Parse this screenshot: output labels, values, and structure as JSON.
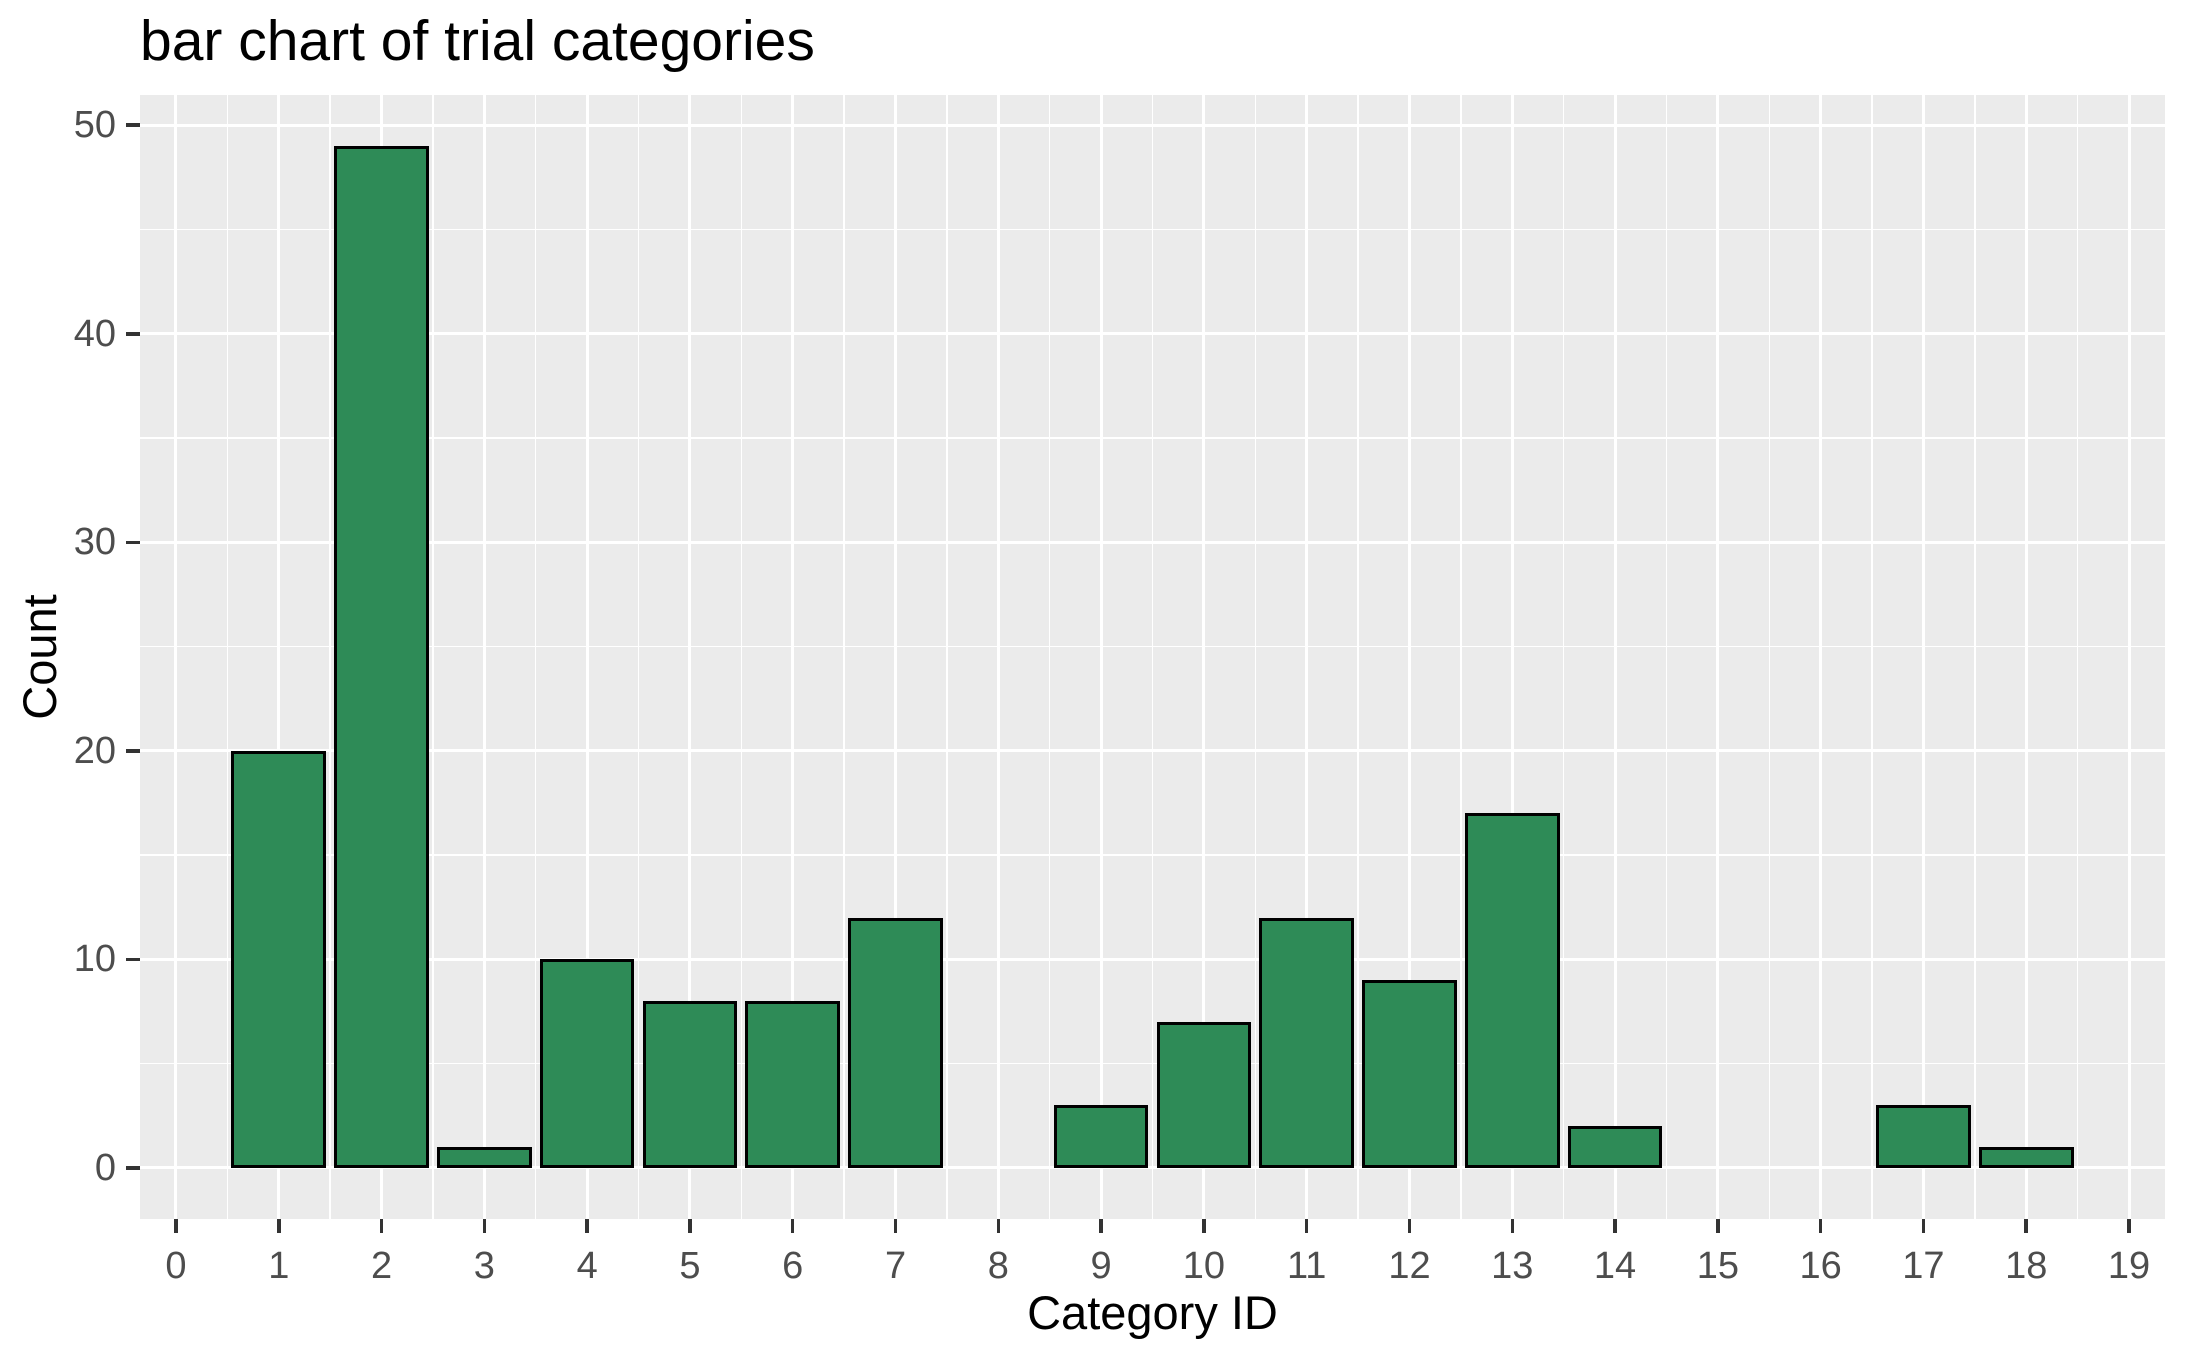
{
  "chart_data": {
    "type": "bar",
    "title": "bar chart of trial categories",
    "xlabel": "Category ID",
    "ylabel": "Count",
    "categories": [
      0,
      1,
      2,
      3,
      4,
      5,
      6,
      7,
      8,
      9,
      10,
      11,
      12,
      13,
      14,
      15,
      16,
      17,
      18,
      19
    ],
    "values": [
      0,
      20,
      49,
      1,
      10,
      8,
      8,
      12,
      0,
      3,
      7,
      12,
      9,
      17,
      2,
      0,
      0,
      3,
      1,
      0
    ],
    "x_ticks": [
      0,
      1,
      2,
      3,
      4,
      5,
      6,
      7,
      8,
      9,
      10,
      11,
      12,
      13,
      14,
      15,
      16,
      17,
      18,
      19
    ],
    "y_ticks": [
      0,
      10,
      20,
      30,
      40,
      50
    ],
    "y_minor_ticks": [
      5,
      15,
      25,
      35,
      45
    ],
    "x_minor_positions": [
      0.5,
      1.5,
      2.5,
      3.5,
      4.5,
      5.5,
      6.5,
      7.5,
      8.5,
      9.5,
      10.5,
      11.5,
      12.5,
      13.5,
      14.5,
      15.5,
      16.5,
      17.5,
      18.5
    ],
    "xlim": [
      -0.35,
      19.35
    ],
    "ylim": [
      -2.45,
      51.45
    ],
    "bar_width": 0.92,
    "grid": true,
    "legend": false,
    "style": {
      "bar_fill": "#2e8b57",
      "bar_stroke": "#000000",
      "panel_bg": "#ebebeb",
      "grid_color": "#ffffff",
      "tick_label_color": "#4d4d4d",
      "tick_mark_color": "#333333",
      "title_color": "#000000"
    }
  }
}
